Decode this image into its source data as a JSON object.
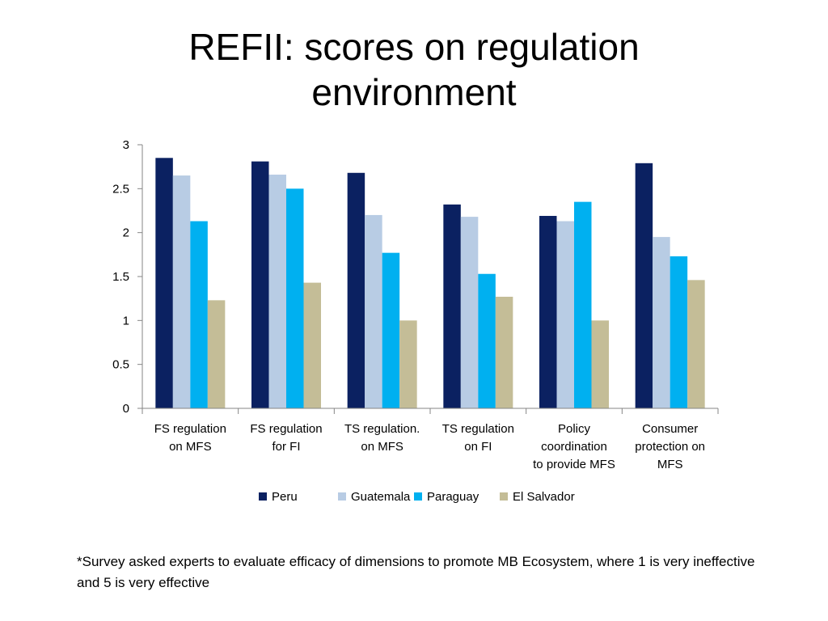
{
  "title": "REFII: scores on regulation environment",
  "footnote": "*Survey asked experts to evaluate efficacy of dimensions to promote MB Ecosystem, where 1 is very ineffective and 5 is very effective",
  "chart_data": {
    "type": "bar",
    "categories": [
      [
        "FS regulation",
        "on MFS"
      ],
      [
        "FS regulation",
        "for FI"
      ],
      [
        "TS regulation.",
        "on MFS"
      ],
      [
        "TS regulation",
        "on FI"
      ],
      [
        "Policy",
        "coordination",
        "to provide MFS"
      ],
      [
        "Consumer",
        "protection on",
        "MFS"
      ]
    ],
    "series": [
      {
        "name": "Peru",
        "color": "#0B2161",
        "values": [
          2.85,
          2.81,
          2.68,
          2.32,
          2.19,
          2.79
        ]
      },
      {
        "name": "Guatemala",
        "color": "#B8CCE4",
        "values": [
          2.65,
          2.66,
          2.2,
          2.18,
          2.13,
          1.95
        ]
      },
      {
        "name": "Paraguay",
        "color": "#00B0F0",
        "values": [
          2.13,
          2.5,
          1.77,
          1.53,
          2.35,
          1.73
        ]
      },
      {
        "name": "El Salvador",
        "color": "#C4BD97",
        "values": [
          1.23,
          1.43,
          1.0,
          1.27,
          1.0,
          1.46
        ]
      }
    ],
    "yticks": [
      "0",
      "0.5",
      "1",
      "1.5",
      "2",
      "2.5",
      "3"
    ],
    "ylim": [
      0,
      3
    ],
    "grid": false,
    "legend": "bottom"
  }
}
